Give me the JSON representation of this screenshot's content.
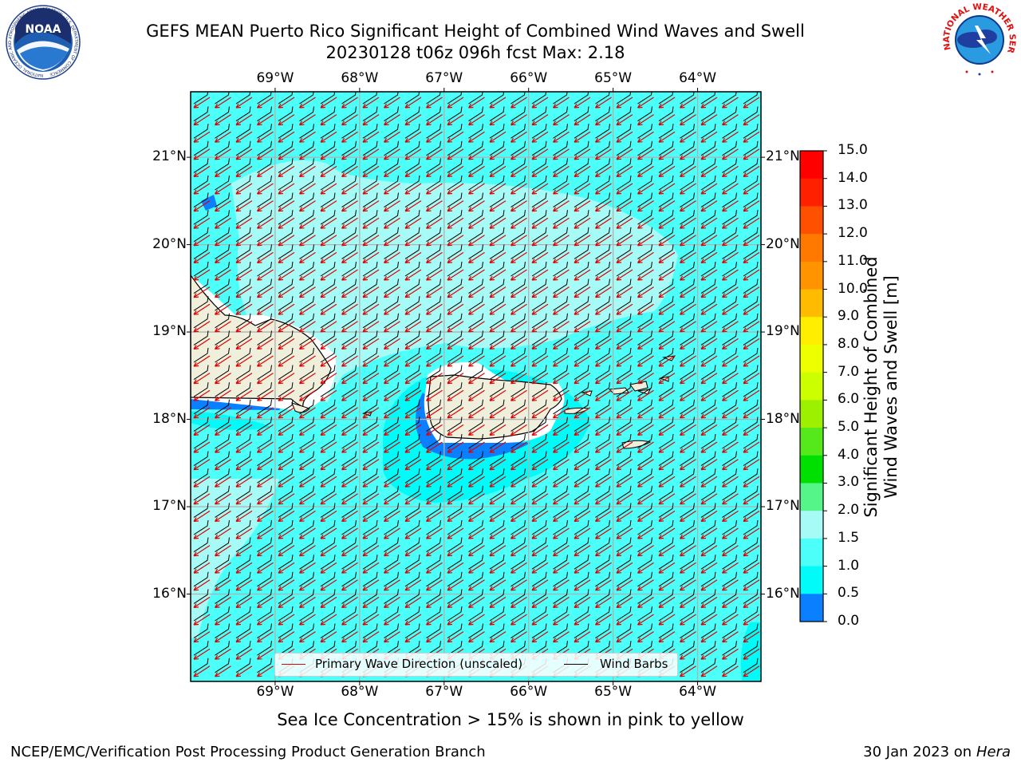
{
  "title": {
    "line1": "GEFS MEAN Puerto Rico Significant Height of Combined Wind Waves and Swell",
    "line2": "20230128 t06z 096h fcst   Max: 2.18"
  },
  "map": {
    "lon_ticks_top": [
      "69°W",
      "68°W",
      "67°W",
      "66°W",
      "65°W",
      "64°W"
    ],
    "lon_ticks_bottom": [
      "69°W",
      "68°W",
      "67°W",
      "66°W",
      "65°W",
      "64°W"
    ],
    "lat_ticks_left": [
      "21°N",
      "20°N",
      "19°N",
      "18°N",
      "17°N",
      "16°N"
    ],
    "lat_ticks_right": [
      "21°N",
      "20°N",
      "19°N",
      "18°N",
      "17°N",
      "16°N"
    ],
    "lon_range": [
      -70.0,
      -63.25
    ],
    "lat_range": [
      15.0,
      21.75
    ],
    "legend": {
      "wave_direction": "Primary Wave Direction (unscaled)",
      "wind_barbs": "Wind Barbs"
    }
  },
  "colorbar": {
    "levels": [
      "15.0",
      "14.0",
      "13.0",
      "12.0",
      "11.0",
      "10.0",
      "9.0",
      "8.0",
      "7.0",
      "6.0",
      "5.0",
      "4.0",
      "3.0",
      "2.0",
      "1.5",
      "1.0",
      "0.5",
      "0.0"
    ],
    "colors": [
      "#ff0000",
      "#ff2000",
      "#ff5000",
      "#ff7800",
      "#ff9400",
      "#ffbb00",
      "#ffee00",
      "#eeff00",
      "#ccff00",
      "#9df000",
      "#55e91c",
      "#00e000",
      "#55f58a",
      "#a7fbf6",
      "#4cfff9",
      "#00fbf9",
      "#0a7fff",
      "#0000ff"
    ],
    "label_line1": "Significant Height of Combined",
    "label_line2": "Wind Waves and Swell [m]"
  },
  "subtitle": "Sea Ice Concentration > 15% is shown in pink to yellow",
  "footer": {
    "left": "NCEP/EMC/Verification Post Processing Product Generation Branch",
    "date": "30 Jan 2023 on ",
    "machine": "Hera"
  },
  "logos": {
    "noaa_text": "NOAA",
    "noaa_ring": "NATIONAL OCEANIC AND ATMOSPHERIC ADMINISTRATION · U.S. DEPARTMENT OF COMMERCE",
    "nws_ring": "NATIONAL WEATHER SERVICE"
  }
}
